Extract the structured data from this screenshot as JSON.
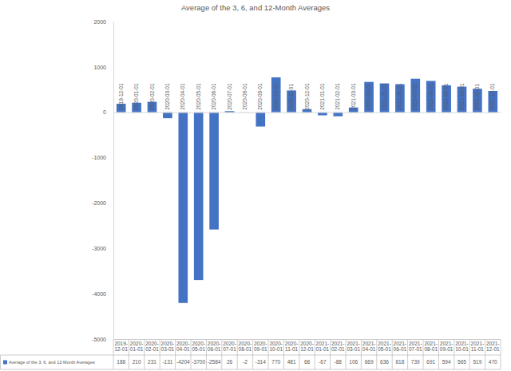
{
  "chart_data": {
    "type": "bar",
    "title": "Average of the 3, 6, and 12-Month Averages",
    "categories": [
      "2019-12-01",
      "2020-01-01",
      "2020-02-01",
      "2020-03-01",
      "2020-04-01",
      "2020-05-01",
      "2020-06-01",
      "2020-07-01",
      "2020-08-01",
      "2020-09-01",
      "2020-10-01",
      "2020-11-01",
      "2020-12-01",
      "2021-01-01",
      "2021-02-01",
      "2021-03-01",
      "2021-04-01",
      "2021-05-01",
      "2021-06-01",
      "2021-07-01",
      "2021-08-01",
      "2021-09-01",
      "2021-10-01",
      "2021-11-01",
      "2021-12-01"
    ],
    "series": [
      {
        "name": "Average of the 3, 6, and 12-Month Averages",
        "color": "#4472c4",
        "values": [
          188,
          210,
          231,
          -131,
          -4204,
          -3700,
          -2584,
          26,
          -2,
          -314,
          770,
          481,
          68,
          -67,
          -88,
          106,
          669,
          636,
          618,
          739,
          691,
          594,
          565,
          519,
          470
        ]
      }
    ],
    "ylim": [
      -5000,
      2000
    ],
    "yticks": [
      -5000,
      -4000,
      -3000,
      -2000,
      -1000,
      0,
      1000,
      2000
    ],
    "grid": false,
    "data_labels": true
  }
}
